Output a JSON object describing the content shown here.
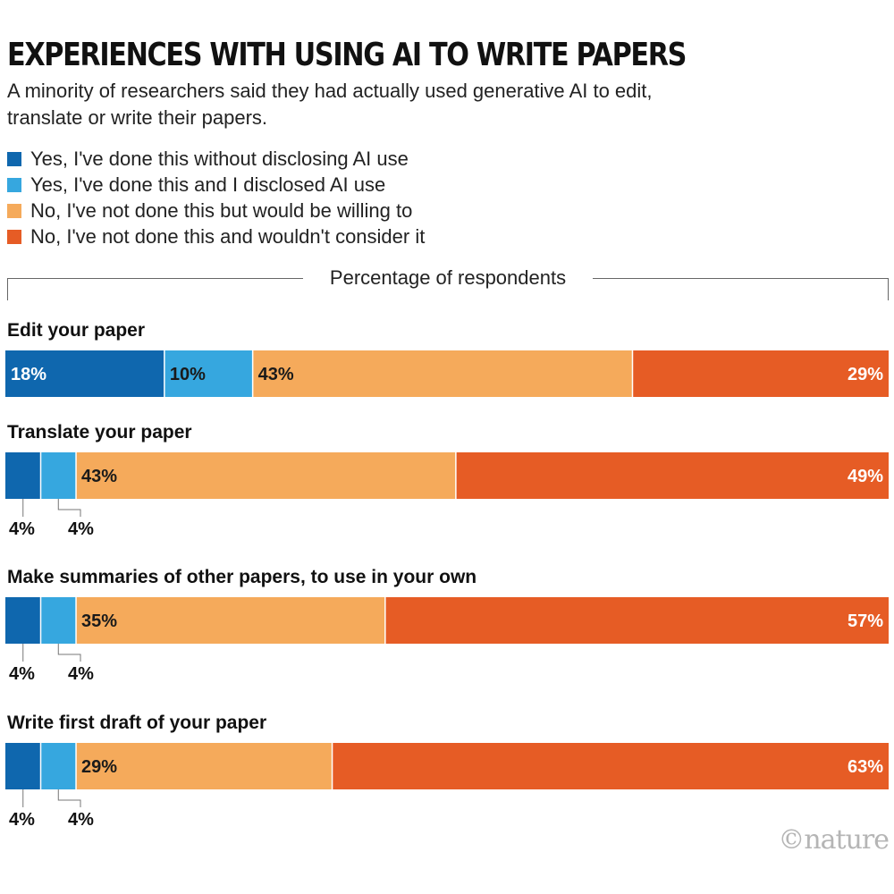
{
  "title": "EXPERIENCES WITH USING AI TO WRITE PAPERS",
  "subtitle": "A minority of researchers said they had actually used generative AI to edit, translate or write their papers.",
  "credit": "©nature",
  "colors": {
    "dark_blue": "#0f67ae",
    "light_blue": "#36a7df",
    "light_orange": "#f5aa5b",
    "dark_orange": "#e65c25"
  },
  "chart_data": {
    "type": "bar",
    "orientation": "horizontal",
    "stacked": true,
    "xlabel": "Percentage of respondents",
    "xlim": [
      0,
      100
    ],
    "legend_position": "top-left",
    "categories": [
      "Edit your paper",
      "Translate your paper",
      "Make summaries of other papers, to use in your own",
      "Write first draft of your paper"
    ],
    "series": [
      {
        "name": "Yes, I've done this without disclosing AI use",
        "color": "#0f67ae",
        "values": [
          18,
          4,
          4,
          4
        ]
      },
      {
        "name": "Yes, I've done this and I disclosed AI use",
        "color": "#36a7df",
        "values": [
          10,
          4,
          4,
          4
        ]
      },
      {
        "name": "No, I've not done this but would be willing to",
        "color": "#f5aa5b",
        "values": [
          43,
          43,
          35,
          29
        ]
      },
      {
        "name": "No, I've not done this and wouldn't consider it",
        "color": "#e65c25",
        "values": [
          29,
          49,
          57,
          63
        ]
      }
    ],
    "data_labels": [
      [
        "18%",
        "10%",
        "43%",
        "29%"
      ],
      [
        "4%",
        "4%",
        "43%",
        "49%"
      ],
      [
        "4%",
        "4%",
        "35%",
        "57%"
      ],
      [
        "4%",
        "4%",
        "29%",
        "63%"
      ]
    ]
  }
}
